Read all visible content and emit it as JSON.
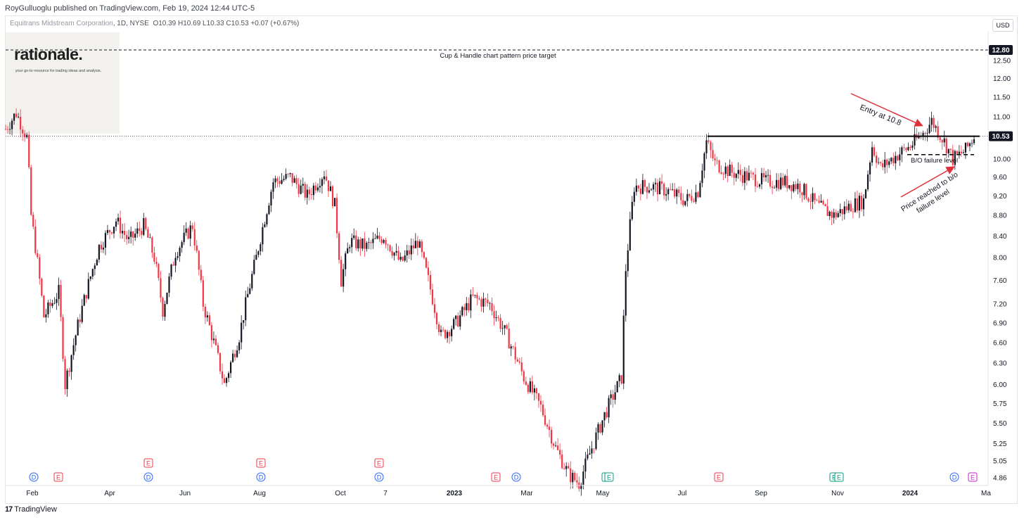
{
  "header": {
    "published": "RoyGulluoglu published on TradingView.com, Feb 19, 2024 12:44 UTC-5"
  },
  "legend": {
    "company": "Equitrans Midstream Corporation",
    "interval_exchange": ", 1D, NYSE",
    "ohlc": "O10.39  H10.69  L10.33  C10.53  +0.07 (+0.67%)"
  },
  "logo": {
    "name": "rationale.",
    "tagline": "your go-to resource for trading ideas and analysis."
  },
  "currency": "USD",
  "footer": {
    "brand": "TradingView",
    "mark": "17"
  },
  "colors": {
    "up": "#131722",
    "down": "#f23645",
    "arrow": "#e0303a"
  },
  "chart_data": {
    "type": "candlestick",
    "y_axis": {
      "ticks": [
        "12.50",
        "12.00",
        "11.50",
        "11.00",
        "10.00",
        "9.60",
        "9.20",
        "8.80",
        "8.40",
        "8.00",
        "7.60",
        "7.20",
        "6.90",
        "6.60",
        "6.30",
        "6.00",
        "5.75",
        "5.50",
        "5.25",
        "5.05",
        "4.86"
      ],
      "log_scale": true
    },
    "x_axis": {
      "ticks": [
        "Feb",
        "Apr",
        "Jun",
        "Aug",
        "Oct",
        "7",
        "2023",
        "Mar",
        "May",
        "Jul",
        "Sep",
        "Nov",
        "2024",
        "Ma"
      ]
    },
    "price_labels": {
      "target": "12.80",
      "last": "10.53"
    },
    "levels": {
      "target": 12.8,
      "resistance": 10.53,
      "bo_failure": 10.1
    },
    "annotations": {
      "target": "Cup & Handle chart pattern price target",
      "entry": "Entry at 10.8",
      "failure": "B/O failure level",
      "reached_line1": "Price reached to b/o",
      "reached_line2": "failure level"
    },
    "events": [
      "D",
      "E",
      "E",
      "D",
      "E",
      "D",
      "E",
      "D",
      "E",
      "D",
      "E",
      "E",
      "E",
      "E",
      "E",
      "D",
      "E"
    ],
    "price_path": [
      [
        0,
        10.7
      ],
      [
        5,
        11.1
      ],
      [
        10,
        10.5
      ],
      [
        12,
        8.8
      ],
      [
        18,
        7.0
      ],
      [
        25,
        7.4
      ],
      [
        28,
        6.0
      ],
      [
        35,
        7.0
      ],
      [
        44,
        8.2
      ],
      [
        52,
        8.7
      ],
      [
        58,
        8.3
      ],
      [
        65,
        8.6
      ],
      [
        70,
        8.0
      ],
      [
        74,
        7.1
      ],
      [
        80,
        8.1
      ],
      [
        88,
        8.6
      ],
      [
        93,
        7.2
      ],
      [
        98,
        6.6
      ],
      [
        103,
        6.0
      ],
      [
        110,
        6.7
      ],
      [
        118,
        8.0
      ],
      [
        126,
        9.5
      ],
      [
        134,
        9.6
      ],
      [
        142,
        9.2
      ],
      [
        150,
        9.7
      ],
      [
        155,
        9.0
      ],
      [
        158,
        7.6
      ],
      [
        162,
        8.3
      ],
      [
        170,
        8.2
      ],
      [
        178,
        8.4
      ],
      [
        186,
        7.9
      ],
      [
        194,
        8.3
      ],
      [
        199,
        7.6
      ],
      [
        205,
        6.7
      ],
      [
        212,
        6.9
      ],
      [
        220,
        7.3
      ],
      [
        228,
        7.2
      ],
      [
        236,
        6.7
      ],
      [
        244,
        6.1
      ],
      [
        252,
        5.7
      ],
      [
        259,
        5.2
      ],
      [
        265,
        4.9
      ],
      [
        270,
        4.8
      ],
      [
        276,
        5.2
      ],
      [
        282,
        5.6
      ],
      [
        290,
        6.1
      ],
      [
        292,
        7.8
      ],
      [
        296,
        9.4
      ],
      [
        304,
        9.4
      ],
      [
        312,
        9.3
      ],
      [
        320,
        9.1
      ],
      [
        326,
        9.3
      ],
      [
        330,
        10.4
      ],
      [
        334,
        9.9
      ],
      [
        342,
        9.7
      ],
      [
        350,
        9.6
      ],
      [
        358,
        9.5
      ],
      [
        366,
        9.5
      ],
      [
        374,
        9.4
      ],
      [
        382,
        9.0
      ],
      [
        390,
        8.8
      ],
      [
        398,
        9.0
      ],
      [
        404,
        9.1
      ],
      [
        408,
        10.3
      ],
      [
        412,
        9.8
      ],
      [
        420,
        10.1
      ],
      [
        426,
        10.3
      ],
      [
        432,
        10.6
      ],
      [
        436,
        10.9
      ],
      [
        442,
        10.4
      ],
      [
        446,
        10.0
      ],
      [
        452,
        10.2
      ],
      [
        456,
        10.53
      ]
    ],
    "x_domain": [
      0,
      456
    ]
  }
}
